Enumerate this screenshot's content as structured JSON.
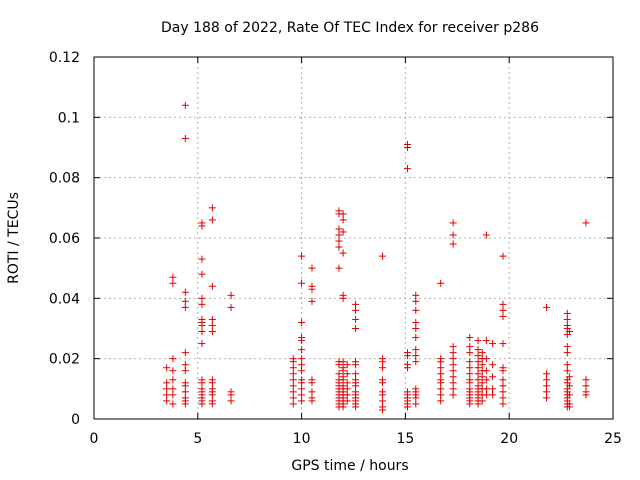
{
  "chart_data": {
    "type": "scatter",
    "title": "Day 188 of 2022, Rate Of TEC Index for receiver p286",
    "xlabel": "GPS time / hours",
    "ylabel": "ROTI / TECUs",
    "xlim": [
      0,
      25
    ],
    "ylim": [
      0,
      0.12
    ],
    "x_ticks": [
      0,
      5,
      10,
      15,
      20,
      25
    ],
    "x_tick_labels": [
      "0",
      "5",
      "10",
      "15",
      "20",
      "25"
    ],
    "y_ticks": [
      0,
      0.02,
      0.04,
      0.06,
      0.08,
      0.1,
      0.12
    ],
    "y_tick_labels": [
      "0",
      "0.02",
      "0.04",
      "0.06",
      "0.08",
      "0.1",
      "0.12"
    ],
    "grid": true,
    "marker": "plus",
    "marker_color": "#e00000",
    "points": [
      [
        3.5,
        0.017
      ],
      [
        3.5,
        0.012
      ],
      [
        3.5,
        0.01
      ],
      [
        3.5,
        0.008
      ],
      [
        3.5,
        0.006
      ],
      [
        3.8,
        0.047
      ],
      [
        3.8,
        0.045
      ],
      [
        3.8,
        0.02
      ],
      [
        3.8,
        0.016
      ],
      [
        3.8,
        0.013
      ],
      [
        3.8,
        0.01
      ],
      [
        3.8,
        0.008
      ],
      [
        3.8,
        0.005
      ],
      [
        4.4,
        0.104
      ],
      [
        4.4,
        0.093
      ],
      [
        4.4,
        0.042
      ],
      [
        4.4,
        0.039
      ],
      [
        4.4,
        0.037
      ],
      [
        4.4,
        0.022
      ],
      [
        4.4,
        0.018
      ],
      [
        4.4,
        0.016
      ],
      [
        4.4,
        0.012
      ],
      [
        4.4,
        0.011
      ],
      [
        4.4,
        0.009
      ],
      [
        4.4,
        0.007
      ],
      [
        4.4,
        0.006
      ],
      [
        4.4,
        0.005
      ],
      [
        5.2,
        0.065
      ],
      [
        5.2,
        0.064
      ],
      [
        5.2,
        0.053
      ],
      [
        5.2,
        0.048
      ],
      [
        5.2,
        0.04
      ],
      [
        5.2,
        0.038
      ],
      [
        5.2,
        0.033
      ],
      [
        5.2,
        0.032
      ],
      [
        5.2,
        0.031
      ],
      [
        5.2,
        0.029
      ],
      [
        5.2,
        0.025
      ],
      [
        5.2,
        0.013
      ],
      [
        5.2,
        0.012
      ],
      [
        5.2,
        0.01
      ],
      [
        5.2,
        0.009
      ],
      [
        5.2,
        0.008
      ],
      [
        5.2,
        0.007
      ],
      [
        5.2,
        0.006
      ],
      [
        5.2,
        0.005
      ],
      [
        5.7,
        0.07
      ],
      [
        5.7,
        0.066
      ],
      [
        5.7,
        0.044
      ],
      [
        5.7,
        0.033
      ],
      [
        5.7,
        0.031
      ],
      [
        5.7,
        0.029
      ],
      [
        5.7,
        0.013
      ],
      [
        5.7,
        0.012
      ],
      [
        5.7,
        0.01
      ],
      [
        5.7,
        0.009
      ],
      [
        5.7,
        0.008
      ],
      [
        5.7,
        0.006
      ],
      [
        5.7,
        0.005
      ],
      [
        6.6,
        0.041
      ],
      [
        6.6,
        0.037
      ],
      [
        6.6,
        0.009
      ],
      [
        6.6,
        0.008
      ],
      [
        6.6,
        0.006
      ],
      [
        9.6,
        0.02
      ],
      [
        9.6,
        0.019
      ],
      [
        9.6,
        0.017
      ],
      [
        9.6,
        0.015
      ],
      [
        9.6,
        0.013
      ],
      [
        9.6,
        0.011
      ],
      [
        9.6,
        0.009
      ],
      [
        9.6,
        0.007
      ],
      [
        9.6,
        0.005
      ],
      [
        10.0,
        0.054
      ],
      [
        10.0,
        0.045
      ],
      [
        10.0,
        0.032
      ],
      [
        10.0,
        0.027
      ],
      [
        10.0,
        0.026
      ],
      [
        10.0,
        0.023
      ],
      [
        10.0,
        0.02
      ],
      [
        10.0,
        0.018
      ],
      [
        10.0,
        0.016
      ],
      [
        10.0,
        0.013
      ],
      [
        10.0,
        0.012
      ],
      [
        10.0,
        0.01
      ],
      [
        10.0,
        0.008
      ],
      [
        10.0,
        0.006
      ],
      [
        10.5,
        0.05
      ],
      [
        10.5,
        0.044
      ],
      [
        10.5,
        0.043
      ],
      [
        10.5,
        0.039
      ],
      [
        10.5,
        0.013
      ],
      [
        10.5,
        0.012
      ],
      [
        10.5,
        0.009
      ],
      [
        10.5,
        0.007
      ],
      [
        10.5,
        0.006
      ],
      [
        11.8,
        0.069
      ],
      [
        11.8,
        0.068
      ],
      [
        11.8,
        0.063
      ],
      [
        11.8,
        0.061
      ],
      [
        11.8,
        0.059
      ],
      [
        11.8,
        0.057
      ],
      [
        11.8,
        0.05
      ],
      [
        11.8,
        0.019
      ],
      [
        11.8,
        0.018
      ],
      [
        11.8,
        0.015
      ],
      [
        11.8,
        0.013
      ],
      [
        11.8,
        0.012
      ],
      [
        11.8,
        0.011
      ],
      [
        11.8,
        0.01
      ],
      [
        11.8,
        0.009
      ],
      [
        11.8,
        0.008
      ],
      [
        11.8,
        0.007
      ],
      [
        11.8,
        0.006
      ],
      [
        11.8,
        0.005
      ],
      [
        11.8,
        0.004
      ],
      [
        12.0,
        0.068
      ],
      [
        12.0,
        0.066
      ],
      [
        12.0,
        0.062
      ],
      [
        12.0,
        0.055
      ],
      [
        12.0,
        0.041
      ],
      [
        12.0,
        0.04
      ],
      [
        12.0,
        0.019
      ],
      [
        12.0,
        0.017
      ],
      [
        12.0,
        0.016
      ],
      [
        12.0,
        0.014
      ],
      [
        12.0,
        0.013
      ],
      [
        12.0,
        0.011
      ],
      [
        12.0,
        0.01
      ],
      [
        12.0,
        0.009
      ],
      [
        12.0,
        0.008
      ],
      [
        12.0,
        0.007
      ],
      [
        12.0,
        0.006
      ],
      [
        12.0,
        0.005
      ],
      [
        12.0,
        0.004
      ],
      [
        12.2,
        0.018
      ],
      [
        12.2,
        0.015
      ],
      [
        12.2,
        0.012
      ],
      [
        12.2,
        0.01
      ],
      [
        12.2,
        0.008
      ],
      [
        12.2,
        0.006
      ],
      [
        12.6,
        0.038
      ],
      [
        12.6,
        0.036
      ],
      [
        12.6,
        0.033
      ],
      [
        12.6,
        0.03
      ],
      [
        12.6,
        0.019
      ],
      [
        12.6,
        0.018
      ],
      [
        12.6,
        0.015
      ],
      [
        12.6,
        0.013
      ],
      [
        12.6,
        0.012
      ],
      [
        12.6,
        0.011
      ],
      [
        12.6,
        0.009
      ],
      [
        12.6,
        0.008
      ],
      [
        12.6,
        0.007
      ],
      [
        12.6,
        0.006
      ],
      [
        12.6,
        0.005
      ],
      [
        12.6,
        0.004
      ],
      [
        13.9,
        0.054
      ],
      [
        13.9,
        0.02
      ],
      [
        13.9,
        0.019
      ],
      [
        13.9,
        0.017
      ],
      [
        13.9,
        0.013
      ],
      [
        13.9,
        0.012
      ],
      [
        13.9,
        0.009
      ],
      [
        13.9,
        0.008
      ],
      [
        13.9,
        0.006
      ],
      [
        13.9,
        0.004
      ],
      [
        13.9,
        0.003
      ],
      [
        15.1,
        0.091
      ],
      [
        15.1,
        0.09
      ],
      [
        15.1,
        0.083
      ],
      [
        15.1,
        0.022
      ],
      [
        15.1,
        0.021
      ],
      [
        15.1,
        0.018
      ],
      [
        15.1,
        0.017
      ],
      [
        15.1,
        0.009
      ],
      [
        15.1,
        0.008
      ],
      [
        15.1,
        0.007
      ],
      [
        15.1,
        0.006
      ],
      [
        15.1,
        0.005
      ],
      [
        15.1,
        0.004
      ],
      [
        15.5,
        0.041
      ],
      [
        15.5,
        0.039
      ],
      [
        15.5,
        0.036
      ],
      [
        15.5,
        0.032
      ],
      [
        15.5,
        0.03
      ],
      [
        15.5,
        0.027
      ],
      [
        15.5,
        0.023
      ],
      [
        15.5,
        0.021
      ],
      [
        15.5,
        0.019
      ],
      [
        15.5,
        0.01
      ],
      [
        15.5,
        0.009
      ],
      [
        15.5,
        0.008
      ],
      [
        15.5,
        0.007
      ],
      [
        15.5,
        0.005
      ],
      [
        16.7,
        0.045
      ],
      [
        16.7,
        0.02
      ],
      [
        16.7,
        0.019
      ],
      [
        16.7,
        0.017
      ],
      [
        16.7,
        0.015
      ],
      [
        16.7,
        0.013
      ],
      [
        16.7,
        0.012
      ],
      [
        16.7,
        0.01
      ],
      [
        16.7,
        0.008
      ],
      [
        16.7,
        0.006
      ],
      [
        17.3,
        0.065
      ],
      [
        17.3,
        0.061
      ],
      [
        17.3,
        0.058
      ],
      [
        17.3,
        0.024
      ],
      [
        17.3,
        0.022
      ],
      [
        17.3,
        0.02
      ],
      [
        17.3,
        0.018
      ],
      [
        17.3,
        0.016
      ],
      [
        17.3,
        0.014
      ],
      [
        17.3,
        0.012
      ],
      [
        17.3,
        0.01
      ],
      [
        17.3,
        0.008
      ],
      [
        18.1,
        0.027
      ],
      [
        18.1,
        0.024
      ],
      [
        18.1,
        0.022
      ],
      [
        18.1,
        0.019
      ],
      [
        18.1,
        0.017
      ],
      [
        18.1,
        0.015
      ],
      [
        18.1,
        0.013
      ],
      [
        18.1,
        0.012
      ],
      [
        18.1,
        0.01
      ],
      [
        18.1,
        0.009
      ],
      [
        18.1,
        0.008
      ],
      [
        18.1,
        0.007
      ],
      [
        18.1,
        0.006
      ],
      [
        18.1,
        0.005
      ],
      [
        18.5,
        0.026
      ],
      [
        18.5,
        0.023
      ],
      [
        18.5,
        0.021
      ],
      [
        18.5,
        0.019
      ],
      [
        18.5,
        0.017
      ],
      [
        18.5,
        0.015
      ],
      [
        18.5,
        0.013
      ],
      [
        18.5,
        0.011
      ],
      [
        18.5,
        0.01
      ],
      [
        18.5,
        0.009
      ],
      [
        18.5,
        0.008
      ],
      [
        18.5,
        0.007
      ],
      [
        18.5,
        0.006
      ],
      [
        18.5,
        0.005
      ],
      [
        18.7,
        0.022
      ],
      [
        18.7,
        0.02
      ],
      [
        18.7,
        0.018
      ],
      [
        18.7,
        0.016
      ],
      [
        18.7,
        0.014
      ],
      [
        18.7,
        0.012
      ],
      [
        18.7,
        0.01
      ],
      [
        18.7,
        0.008
      ],
      [
        18.7,
        0.006
      ],
      [
        18.9,
        0.061
      ],
      [
        18.9,
        0.026
      ],
      [
        18.9,
        0.02
      ],
      [
        18.9,
        0.016
      ],
      [
        18.9,
        0.013
      ],
      [
        18.9,
        0.01
      ],
      [
        18.9,
        0.008
      ],
      [
        19.2,
        0.025
      ],
      [
        19.2,
        0.018
      ],
      [
        19.2,
        0.014
      ],
      [
        19.2,
        0.01
      ],
      [
        19.2,
        0.008
      ],
      [
        19.7,
        0.054
      ],
      [
        19.7,
        0.038
      ],
      [
        19.7,
        0.036
      ],
      [
        19.7,
        0.034
      ],
      [
        19.7,
        0.025
      ],
      [
        19.7,
        0.017
      ],
      [
        19.7,
        0.016
      ],
      [
        19.7,
        0.013
      ],
      [
        19.7,
        0.011
      ],
      [
        19.7,
        0.009
      ],
      [
        19.7,
        0.007
      ],
      [
        19.7,
        0.005
      ],
      [
        21.8,
        0.037
      ],
      [
        21.8,
        0.015
      ],
      [
        21.8,
        0.013
      ],
      [
        21.8,
        0.011
      ],
      [
        21.8,
        0.009
      ],
      [
        21.8,
        0.007
      ],
      [
        22.8,
        0.035
      ],
      [
        22.8,
        0.033
      ],
      [
        22.8,
        0.031
      ],
      [
        22.8,
        0.03
      ],
      [
        22.8,
        0.028
      ],
      [
        22.8,
        0.024
      ],
      [
        22.8,
        0.022
      ],
      [
        22.8,
        0.018
      ],
      [
        22.8,
        0.016
      ],
      [
        22.8,
        0.013
      ],
      [
        22.8,
        0.012
      ],
      [
        22.8,
        0.01
      ],
      [
        22.8,
        0.009
      ],
      [
        22.8,
        0.008
      ],
      [
        22.8,
        0.007
      ],
      [
        22.8,
        0.006
      ],
      [
        22.8,
        0.005
      ],
      [
        22.8,
        0.004
      ],
      [
        22.9,
        0.029
      ],
      [
        22.9,
        0.014
      ],
      [
        22.9,
        0.011
      ],
      [
        22.9,
        0.008
      ],
      [
        22.9,
        0.005
      ],
      [
        22.9,
        0.004
      ],
      [
        23.7,
        0.065
      ],
      [
        23.7,
        0.013
      ],
      [
        23.7,
        0.011
      ],
      [
        23.7,
        0.009
      ],
      [
        23.7,
        0.008
      ]
    ]
  }
}
